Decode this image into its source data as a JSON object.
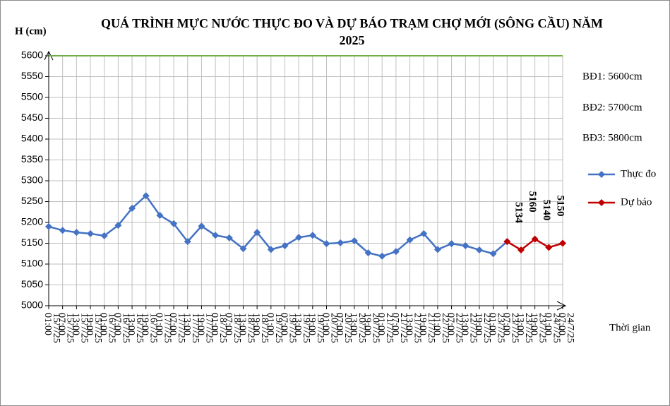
{
  "chart_data": {
    "type": "line",
    "title": "QUÁ TRÌNH MỰC NƯỚC THỰC ĐO VÀ DỰ BÁO TRẠM CHỢ MỚI (SÔNG CẦU) NĂM 2025",
    "y_label": "H (cm)",
    "x_label": "Thời gian",
    "annotations": [
      "BĐ1: 5600cm",
      "BĐ2: 5700cm",
      "BĐ3: 5800cm"
    ],
    "categories": [
      "01:00 15/7/25",
      "07:00 15/7/25",
      "13:00 15/7/25",
      "19:00 15/7/25",
      "01:00 16/7/25",
      "07:00 16/7/25",
      "13:00 16/7/25",
      "19:00 16/7/25",
      "01:00 17/7/25",
      "07:00 17/7/25",
      "13:00 17/7/25",
      "19:00 17/7/25",
      "01:00 18/7/25",
      "07:00 18/7/25",
      "13:00 18/7/25",
      "19:00 18/7/25",
      "01:00 19/7/25",
      "07:00 19/7/25",
      "13:00 19/7/25",
      "19:00 19/7/25",
      "01:00 20/7/25",
      "07:00 20/7/25",
      "13:00 20/7/25",
      "19:00 20/7/25",
      "01:00 21/7/25",
      "07:00 21/7/25",
      "13:00 21/7/25",
      "19:00 21/7/25",
      "01:00 22/7/25",
      "07:00 22/7/25",
      "13:00 22/7/25",
      "19:00 22/7/25",
      "01:00 23/7/25",
      "07:00 23/7/25",
      "13:00 23/7/25",
      "19:00 23/7/25",
      "01:00 24/7/25",
      "07:00 24/7/25"
    ],
    "series": [
      {
        "name": "Thực đo",
        "color": "#4472c4",
        "values": [
          5190,
          5181,
          5176,
          5173,
          5168,
          5193,
          5234,
          5264,
          5217,
          5197,
          5154,
          5191,
          5169,
          5163,
          5137,
          5176,
          5135,
          5144,
          5164,
          5169,
          5149,
          5151,
          5156,
          5127,
          5119,
          5130,
          5158,
          5173,
          5135,
          5149,
          5144,
          5134,
          5125,
          5154,
          null,
          null,
          null,
          null
        ]
      },
      {
        "name": "Dự báo",
        "color": "#c00000",
        "values": [
          null,
          null,
          null,
          null,
          null,
          null,
          null,
          null,
          null,
          null,
          null,
          null,
          null,
          null,
          null,
          null,
          null,
          null,
          null,
          null,
          null,
          null,
          null,
          null,
          null,
          null,
          null,
          null,
          null,
          null,
          null,
          null,
          null,
          5154,
          5134,
          5160,
          5140,
          5150
        ],
        "value_labels": [
          null,
          null,
          null,
          null,
          null,
          null,
          null,
          null,
          null,
          null,
          null,
          null,
          null,
          null,
          null,
          null,
          null,
          null,
          null,
          null,
          null,
          null,
          null,
          null,
          null,
          null,
          null,
          null,
          null,
          null,
          null,
          null,
          null,
          null,
          "5134",
          "5160",
          "5140",
          "5150"
        ]
      }
    ],
    "alarm_line": {
      "value": 5600,
      "color": "#70ad47"
    },
    "ylim": [
      5000,
      5600
    ],
    "yticks": [
      5000,
      5050,
      5100,
      5150,
      5200,
      5250,
      5300,
      5350,
      5400,
      5450,
      5500,
      5550,
      5600
    ],
    "grid": true,
    "legend": "right"
  }
}
